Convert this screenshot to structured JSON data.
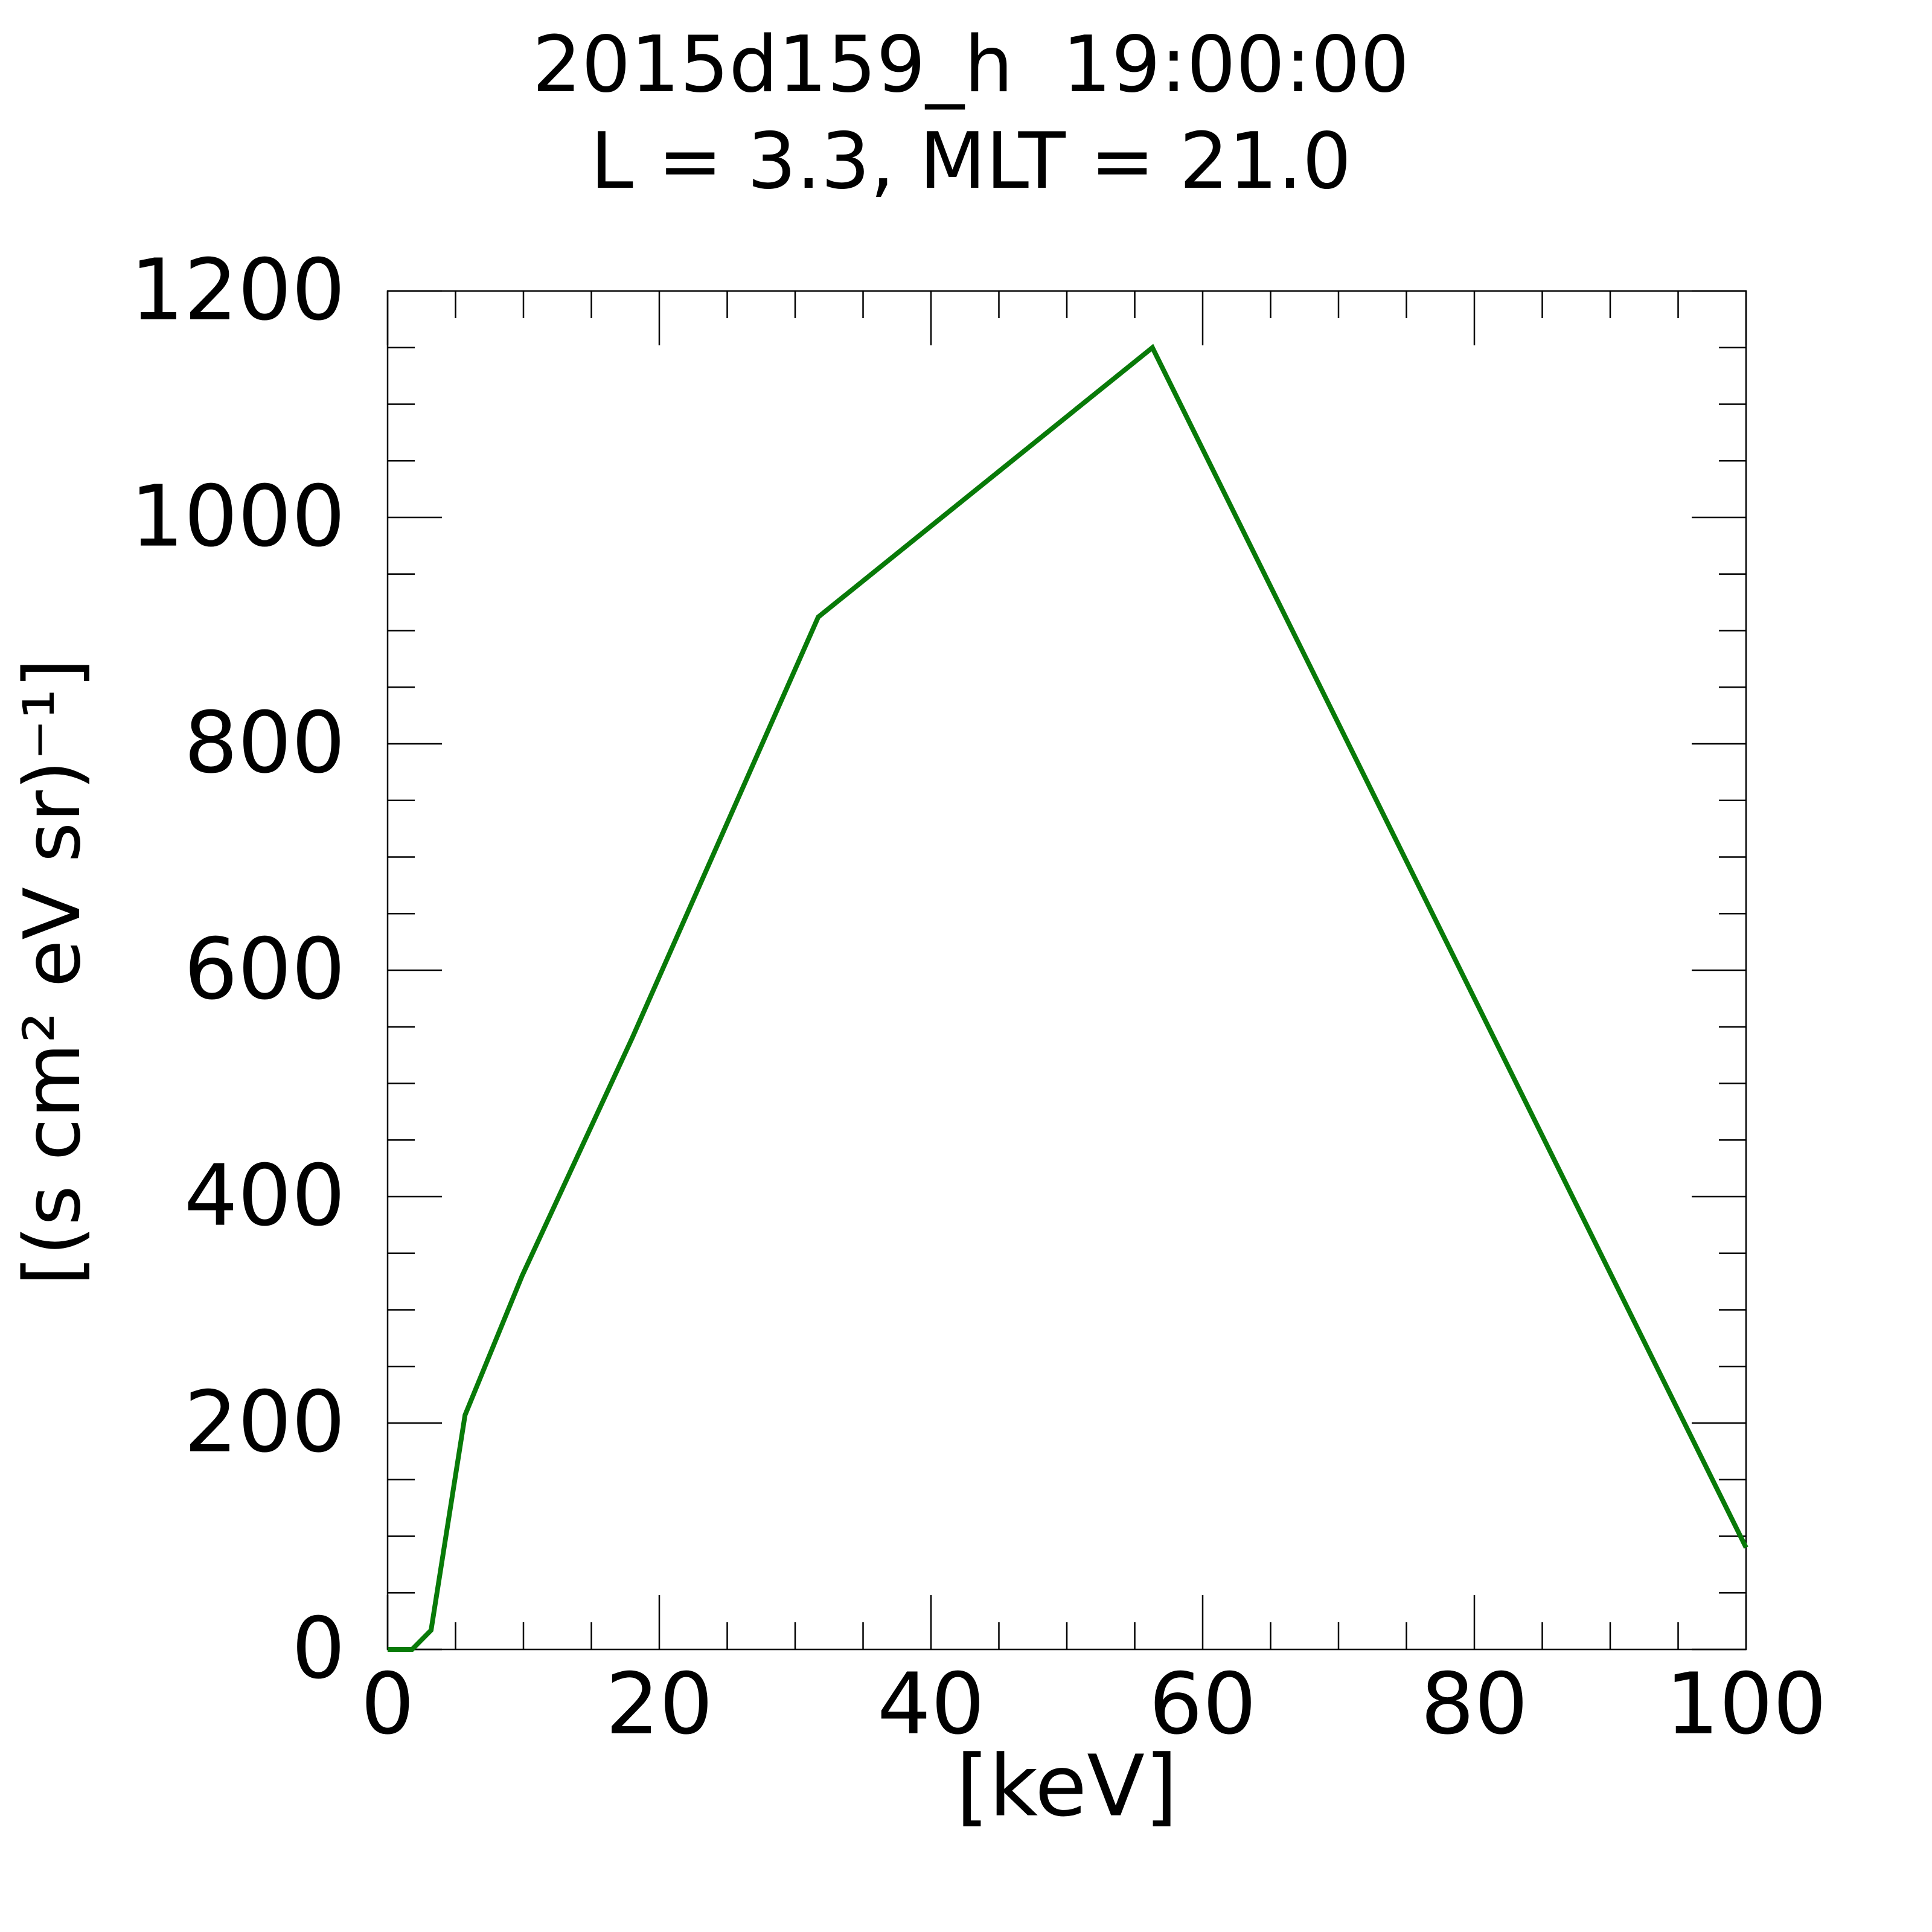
{
  "chart_data": {
    "type": "line",
    "title": "2015d159_h  19:00:00",
    "subtitle": "L = 3.3, MLT = 21.0",
    "x_label": "[keV]",
    "y_label": "[(s cm² eV sr)⁻¹]",
    "x": [
      0,
      1.8,
      3.2,
      5.7,
      9.9,
      18,
      31.7,
      56.3,
      100
    ],
    "series": [
      {
        "color": "#087a08",
        "values": [
          0,
          0,
          17,
          207,
          330,
          540,
          912,
          1150,
          90
        ]
      }
    ],
    "xlim": [
      0,
      100
    ],
    "xticks": [
      0,
      20,
      40,
      60,
      80,
      100
    ],
    "xminorticks": [
      5,
      10,
      15,
      25,
      30,
      35,
      45,
      50,
      55,
      65,
      70,
      75,
      85,
      90,
      95
    ],
    "ylim": [
      0,
      1200
    ],
    "yticks": [
      0,
      200,
      400,
      600,
      800,
      1000,
      1200
    ],
    "yminorticks": [
      50,
      100,
      150,
      250,
      300,
      350,
      450,
      500,
      550,
      650,
      700,
      750,
      850,
      900,
      950,
      1050,
      1100,
      1150
    ]
  }
}
